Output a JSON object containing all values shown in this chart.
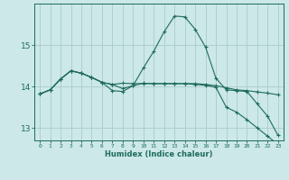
{
  "background_color": "#cce8e8",
  "grid_color": "#aacccc",
  "line_color": "#1e6b5e",
  "xlabel": "Humidex (Indice chaleur)",
  "xlim": [
    -0.5,
    23.5
  ],
  "ylim": [
    12.7,
    16.0
  ],
  "yticks": [
    13,
    14,
    15
  ],
  "xticks": [
    0,
    1,
    2,
    3,
    4,
    5,
    6,
    7,
    8,
    9,
    10,
    11,
    12,
    13,
    14,
    15,
    16,
    17,
    18,
    19,
    20,
    21,
    22,
    23
  ],
  "curve1_x": [
    0,
    1,
    2,
    3,
    4,
    5,
    6,
    7,
    8,
    9,
    10,
    11,
    12,
    13,
    14,
    15,
    16,
    17,
    18,
    19,
    20,
    21,
    22,
    23
  ],
  "curve1_y": [
    13.82,
    13.92,
    14.18,
    14.38,
    14.32,
    14.22,
    14.1,
    14.05,
    13.95,
    14.02,
    14.08,
    14.07,
    14.07,
    14.07,
    14.07,
    14.07,
    14.05,
    14.02,
    13.97,
    13.92,
    13.9,
    13.87,
    13.84,
    13.8
  ],
  "curve2_x": [
    0,
    1,
    2,
    3,
    4,
    5,
    6,
    7,
    8,
    9,
    10,
    11,
    12,
    13,
    14,
    15,
    16,
    17,
    18,
    19,
    20,
    21,
    22,
    23
  ],
  "curve2_y": [
    13.82,
    13.92,
    14.18,
    14.38,
    14.32,
    14.22,
    14.1,
    13.9,
    13.88,
    14.02,
    14.45,
    14.85,
    15.32,
    15.7,
    15.68,
    15.38,
    14.95,
    14.2,
    13.92,
    13.9,
    13.88,
    13.58,
    13.28,
    12.82
  ],
  "curve3_x": [
    0,
    1,
    2,
    3,
    4,
    5,
    6,
    7,
    8,
    9,
    10,
    11,
    12,
    13,
    14,
    15,
    16,
    17,
    18,
    19,
    20,
    21,
    22,
    23
  ],
  "curve3_y": [
    13.82,
    13.92,
    14.18,
    14.38,
    14.32,
    14.22,
    14.1,
    14.05,
    14.08,
    14.07,
    14.07,
    14.07,
    14.07,
    14.07,
    14.07,
    14.05,
    14.03,
    13.98,
    13.5,
    13.38,
    13.2,
    13.0,
    12.8,
    12.6
  ]
}
